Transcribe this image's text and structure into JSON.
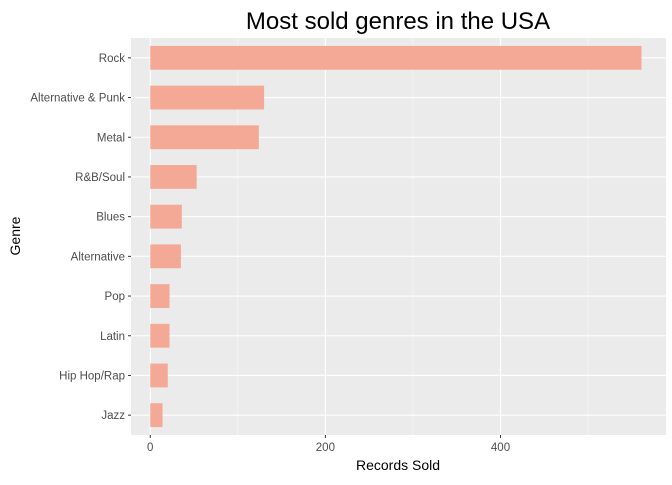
{
  "colors": {
    "panel_background": "#ebebeb",
    "grid_major": "#ffffff",
    "bar_fill": "#f4a896",
    "tick_text": "#4d4d4d",
    "title_text": "#000000"
  },
  "chart_data": {
    "type": "bar",
    "orientation": "horizontal",
    "title": "Most sold genres in the USA",
    "xlabel": "Records Sold",
    "ylabel": "Genre",
    "categories": [
      "Rock",
      "Alternative & Punk",
      "Metal",
      "R&B/Soul",
      "Blues",
      "Alternative",
      "Pop",
      "Latin",
      "Hip Hop/Rap",
      "Jazz"
    ],
    "values": [
      561,
      130,
      124,
      53,
      36,
      35,
      22,
      22,
      20,
      14
    ],
    "xlim": [
      -22,
      589
    ],
    "xticks": [
      0,
      200,
      400
    ],
    "xtick_labels": [
      "0",
      "200",
      "400"
    ],
    "grid": true,
    "legend": "none"
  }
}
